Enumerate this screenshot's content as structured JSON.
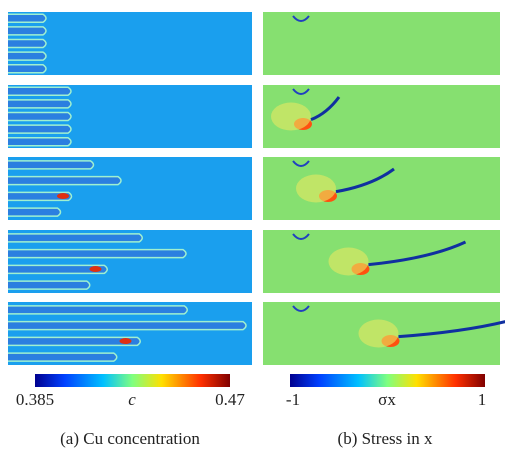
{
  "left": {
    "colorbar": {
      "min": 0.385,
      "symbol": "c",
      "max": 0.47
    },
    "caption": "(a) Cu concentration"
  },
  "right": {
    "colorbar": {
      "min": -1,
      "symbol": "σx",
      "max": 1
    },
    "caption": "(b) Stress in  x"
  }
}
